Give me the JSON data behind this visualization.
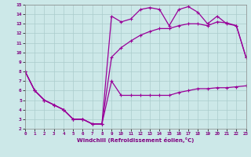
{
  "background_color": "#cce8e8",
  "line_color": "#990099",
  "grid_color": "#aacccc",
  "xlim": [
    0,
    23
  ],
  "ylim": [
    2,
    15
  ],
  "xticks": [
    0,
    1,
    2,
    3,
    4,
    5,
    6,
    7,
    8,
    9,
    10,
    11,
    12,
    13,
    14,
    15,
    16,
    17,
    18,
    19,
    20,
    21,
    22,
    23
  ],
  "yticks": [
    2,
    3,
    4,
    5,
    6,
    7,
    8,
    9,
    10,
    11,
    12,
    13,
    14,
    15
  ],
  "xlabel": "Windchill (Refroidissement éolien,°C)",
  "curve1_x": [
    0,
    1,
    2,
    3,
    4,
    5,
    6,
    7,
    8,
    9,
    10,
    11,
    12,
    13,
    14,
    15,
    16,
    17,
    18,
    19,
    20,
    21,
    22,
    23
  ],
  "curve1_y": [
    8.0,
    6.0,
    5.0,
    4.5,
    4.0,
    3.0,
    3.0,
    2.5,
    2.5,
    7.0,
    5.5,
    5.5,
    5.5,
    5.5,
    5.5,
    5.5,
    5.8,
    6.0,
    6.2,
    6.2,
    6.3,
    6.3,
    6.4,
    6.5
  ],
  "curve2_x": [
    0,
    1,
    2,
    3,
    4,
    5,
    6,
    7,
    8,
    9,
    10,
    11,
    12,
    13,
    14,
    15,
    16,
    17,
    18,
    19,
    20,
    21,
    22,
    23
  ],
  "curve2_y": [
    8.0,
    6.0,
    5.0,
    4.5,
    4.0,
    3.0,
    3.0,
    2.5,
    2.5,
    9.5,
    10.5,
    11.2,
    11.8,
    12.2,
    12.5,
    12.5,
    12.8,
    13.0,
    13.0,
    12.8,
    13.2,
    13.1,
    12.8,
    9.5
  ],
  "curve3_x": [
    0,
    1,
    2,
    3,
    4,
    5,
    6,
    7,
    8,
    9,
    10,
    11,
    12,
    13,
    14,
    15,
    16,
    17,
    18,
    19,
    20,
    21,
    22,
    23
  ],
  "curve3_y": [
    8.0,
    6.0,
    5.0,
    4.5,
    4.0,
    3.0,
    3.0,
    2.5,
    2.5,
    13.8,
    13.2,
    13.5,
    14.5,
    14.7,
    14.5,
    12.8,
    14.5,
    14.8,
    14.2,
    13.0,
    13.8,
    13.0,
    12.8,
    9.5
  ]
}
